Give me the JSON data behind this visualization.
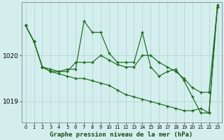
{
  "title": "Graphe pression niveau de la mer (hPa)",
  "bg_color": "#d4eeee",
  "grid_color": "#b8dada",
  "line_color": "#1a6b1a",
  "xlabel_color": "#1a4a1a",
  "ylim": [
    1018.55,
    1021.15
  ],
  "xlim": [
    -0.5,
    23.5
  ],
  "yticks": [
    1019,
    1020
  ],
  "xticks": [
    0,
    1,
    2,
    3,
    4,
    5,
    6,
    7,
    8,
    9,
    10,
    11,
    12,
    13,
    14,
    15,
    16,
    17,
    18,
    19,
    20,
    21,
    22,
    23
  ],
  "series_upper": [
    1020.65,
    1020.3,
    1019.75,
    1019.7,
    1019.65,
    1019.7,
    1019.7,
    1020.75,
    1020.5,
    1020.5,
    1020.05,
    1019.85,
    1019.85,
    1019.85,
    1020.5,
    1019.75,
    1019.55,
    1019.65,
    1019.7,
    1019.45,
    1019.1,
    1018.75,
    1018.75,
    1021.1
  ],
  "series_mid": [
    1020.65,
    1020.3,
    1019.75,
    1019.65,
    1019.65,
    1019.65,
    1019.85,
    1019.85,
    1019.85,
    1020.0,
    1019.9,
    1019.8,
    1019.75,
    1019.75,
    1020.0,
    1020.0,
    1019.85,
    1019.75,
    1019.65,
    1019.5,
    1019.3,
    1019.2,
    1019.2,
    1021.05
  ],
  "series_lower": [
    1020.65,
    1020.3,
    1019.75,
    1019.65,
    1019.6,
    1019.55,
    1019.5,
    1019.5,
    1019.45,
    1019.4,
    1019.35,
    1019.25,
    1019.15,
    1019.1,
    1019.05,
    1019.0,
    1018.95,
    1018.9,
    1018.85,
    1018.8,
    1018.8,
    1018.85,
    1018.75,
    1021.05
  ]
}
